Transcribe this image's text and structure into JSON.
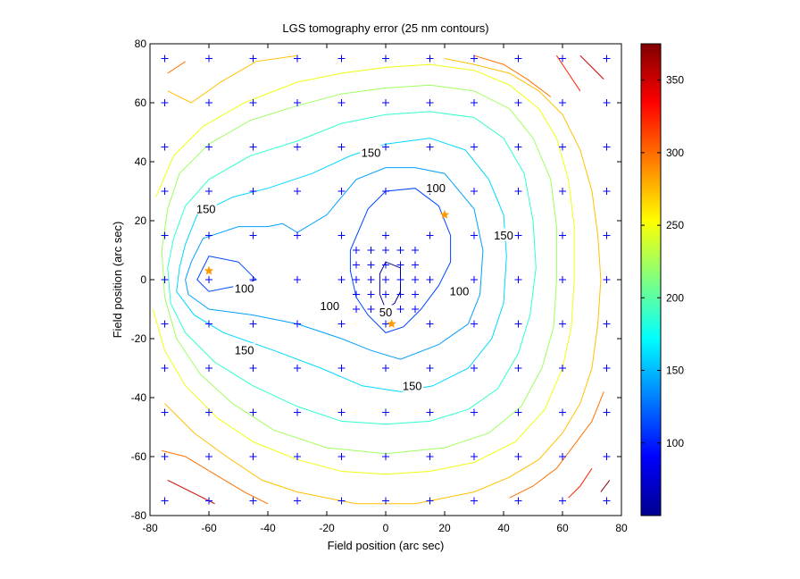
{
  "chart_data": {
    "type": "contour",
    "title": "LGS tomography error (25 nm contours)",
    "xlabel": "Field position (arc sec)",
    "ylabel": "Field position (arc sec)",
    "xlim": [
      -80,
      80
    ],
    "ylim": [
      -80,
      80
    ],
    "xticks": [
      "-80",
      "-60",
      "-40",
      "-20",
      "0",
      "20",
      "40",
      "60",
      "80"
    ],
    "yticks": [
      "-80",
      "-60",
      "-40",
      "-20",
      "0",
      "20",
      "40",
      "60",
      "80"
    ],
    "colorbar": {
      "range": [
        50,
        375
      ],
      "colormap": "jet",
      "ticks": [
        "100",
        "150",
        "200",
        "250",
        "300",
        "350"
      ]
    },
    "contour_interval": 25,
    "contours": [
      {
        "level": 50,
        "color": "#00008f",
        "points": [
          [
            -2,
            -5
          ],
          [
            -2,
            2
          ],
          [
            0,
            6
          ],
          [
            5,
            4
          ],
          [
            5,
            -4
          ],
          [
            3,
            -8
          ],
          [
            0,
            -10
          ],
          [
            -2,
            -5
          ]
        ]
      },
      {
        "level": 100,
        "color": "#0047ff",
        "points": [
          [
            -60,
            8
          ],
          [
            -50,
            6
          ],
          [
            -44,
            0
          ],
          [
            -50,
            -2
          ],
          [
            -60,
            -4
          ],
          [
            -64,
            0
          ],
          [
            -60,
            8
          ]
        ]
      },
      {
        "level": 100,
        "color": "#0047ff",
        "points": [
          [
            -12,
            10
          ],
          [
            -12,
            3
          ],
          [
            -10,
            -6
          ],
          [
            -6,
            -12
          ],
          [
            0,
            -18
          ],
          [
            6,
            -16
          ],
          [
            12,
            -10
          ],
          [
            18,
            -2
          ],
          [
            22,
            6
          ],
          [
            22,
            15
          ],
          [
            18,
            25
          ],
          [
            10,
            31
          ],
          [
            0,
            30
          ],
          [
            -6,
            24
          ],
          [
            -12,
            10
          ]
        ]
      },
      {
        "level": 125,
        "color": "#00a0ff",
        "points": [
          [
            -66,
            6
          ],
          [
            -62,
            14
          ],
          [
            -50,
            18
          ],
          [
            -40,
            18
          ],
          [
            -35,
            19
          ],
          [
            -30,
            16
          ],
          [
            -20,
            22
          ],
          [
            -10,
            34
          ],
          [
            0,
            38
          ],
          [
            10,
            38
          ],
          [
            20,
            36
          ],
          [
            30,
            24
          ],
          [
            33,
            10
          ],
          [
            32,
            -5
          ],
          [
            28,
            -15
          ],
          [
            18,
            -22
          ],
          [
            5,
            -27
          ],
          [
            -5,
            -24
          ],
          [
            -15,
            -20
          ],
          [
            -30,
            -15
          ],
          [
            -45,
            -12
          ],
          [
            -60,
            -10
          ],
          [
            -67,
            -5
          ],
          [
            -68,
            0
          ],
          [
            -66,
            6
          ]
        ]
      },
      {
        "level": 150,
        "color": "#00d8ff",
        "points": [
          [
            -70,
            4
          ],
          [
            -68,
            12
          ],
          [
            -64,
            22
          ],
          [
            -52,
            28
          ],
          [
            -40,
            31
          ],
          [
            -25,
            36
          ],
          [
            -12,
            42
          ],
          [
            0,
            46
          ],
          [
            15,
            48
          ],
          [
            27,
            44
          ],
          [
            35,
            34
          ],
          [
            40,
            22
          ],
          [
            41,
            8
          ],
          [
            40,
            -8
          ],
          [
            36,
            -20
          ],
          [
            28,
            -30
          ],
          [
            16,
            -36
          ],
          [
            5,
            -38
          ],
          [
            -8,
            -36
          ],
          [
            -22,
            -30
          ],
          [
            -38,
            -24
          ],
          [
            -55,
            -18
          ],
          [
            -65,
            -12
          ],
          [
            -71,
            -4
          ],
          [
            -70,
            4
          ]
        ]
      },
      {
        "level": 175,
        "color": "#30ffcf",
        "points": [
          [
            -74,
            4
          ],
          [
            -72,
            14
          ],
          [
            -68,
            25
          ],
          [
            -60,
            34
          ],
          [
            -46,
            42
          ],
          [
            -30,
            47
          ],
          [
            -15,
            53
          ],
          [
            0,
            56
          ],
          [
            15,
            57
          ],
          [
            30,
            55
          ],
          [
            40,
            48
          ],
          [
            47,
            36
          ],
          [
            50,
            20
          ],
          [
            51,
            4
          ],
          [
            49,
            -12
          ],
          [
            45,
            -25
          ],
          [
            38,
            -37
          ],
          [
            28,
            -44
          ],
          [
            15,
            -48
          ],
          [
            0,
            -49
          ],
          [
            -15,
            -48
          ],
          [
            -30,
            -43
          ],
          [
            -45,
            -36
          ],
          [
            -58,
            -28
          ],
          [
            -68,
            -18
          ],
          [
            -73,
            -8
          ],
          [
            -74,
            4
          ]
        ]
      },
      {
        "level": 200,
        "color": "#9fff60",
        "points": [
          [
            -76,
            10
          ],
          [
            -74,
            24
          ],
          [
            -70,
            36
          ],
          [
            -60,
            46
          ],
          [
            -46,
            54
          ],
          [
            -30,
            59
          ],
          [
            -15,
            63
          ],
          [
            0,
            65
          ],
          [
            15,
            66
          ],
          [
            30,
            64
          ],
          [
            42,
            58
          ],
          [
            50,
            48
          ],
          [
            56,
            34
          ],
          [
            58,
            18
          ],
          [
            58,
            0
          ],
          [
            57,
            -16
          ],
          [
            53,
            -30
          ],
          [
            46,
            -43
          ],
          [
            35,
            -52
          ],
          [
            20,
            -57
          ],
          [
            0,
            -59
          ],
          [
            -20,
            -57
          ],
          [
            -38,
            -51
          ],
          [
            -52,
            -42
          ],
          [
            -63,
            -32
          ],
          [
            -71,
            -20
          ],
          [
            -75,
            -6
          ],
          [
            -76,
            10
          ]
        ]
      },
      {
        "level": 225,
        "color": "#efff10",
        "points": [
          [
            -78,
            28
          ],
          [
            -72,
            42
          ],
          [
            -62,
            52
          ],
          [
            -48,
            60
          ],
          [
            -30,
            67
          ],
          [
            -15,
            70
          ],
          [
            0,
            72
          ],
          [
            15,
            73
          ],
          [
            30,
            71
          ],
          [
            42,
            66
          ],
          [
            52,
            58
          ],
          [
            58,
            48
          ],
          [
            62,
            34
          ],
          [
            64,
            18
          ],
          [
            64,
            0
          ],
          [
            63,
            -16
          ],
          [
            60,
            -30
          ],
          [
            54,
            -44
          ],
          [
            44,
            -55
          ],
          [
            30,
            -62
          ],
          [
            15,
            -65
          ],
          [
            0,
            -66
          ],
          [
            -15,
            -65
          ],
          [
            -30,
            -61
          ],
          [
            -45,
            -55
          ],
          [
            -57,
            -47
          ],
          [
            -68,
            -36
          ],
          [
            -75,
            -24
          ],
          [
            -79,
            -10
          ]
        ]
      },
      {
        "level": 250,
        "color": "#ffc000",
        "points": [
          [
            -74,
            64
          ],
          [
            -66,
            60
          ],
          [
            -56,
            67
          ],
          [
            -44,
            74
          ],
          [
            -30,
            76
          ]
        ]
      },
      {
        "level": 250,
        "color": "#ffc000",
        "points": [
          [
            20,
            75
          ],
          [
            30,
            73
          ],
          [
            42,
            70
          ],
          [
            52,
            64
          ],
          [
            60,
            56
          ],
          [
            66,
            44
          ],
          [
            70,
            30
          ],
          [
            72,
            15
          ],
          [
            73,
            0
          ],
          [
            72,
            -15
          ],
          [
            70,
            -30
          ],
          [
            66,
            -42
          ],
          [
            60,
            -52
          ],
          [
            52,
            -61
          ],
          [
            42,
            -67
          ],
          [
            30,
            -72
          ],
          [
            20,
            -74
          ],
          [
            10,
            -76
          ],
          [
            -10,
            -76
          ],
          [
            -20,
            -74
          ],
          [
            -30,
            -72
          ],
          [
            -42,
            -68
          ],
          [
            -54,
            -60
          ],
          [
            -65,
            -52
          ],
          [
            -75,
            -42
          ]
        ]
      },
      {
        "level": 275,
        "color": "#ff7000",
        "points": [
          [
            -74,
            70
          ],
          [
            -68,
            74
          ]
        ]
      },
      {
        "level": 275,
        "color": "#ff7000",
        "points": [
          [
            30,
            76
          ],
          [
            40,
            73
          ],
          [
            48,
            68
          ],
          [
            56,
            62
          ]
        ]
      },
      {
        "level": 275,
        "color": "#ff7000",
        "points": [
          [
            74,
            -38
          ],
          [
            70,
            -48
          ],
          [
            64,
            -56
          ],
          [
            58,
            -64
          ],
          [
            50,
            -70
          ],
          [
            42,
            -74
          ]
        ]
      },
      {
        "level": 275,
        "color": "#ff7000",
        "points": [
          [
            -76,
            -58
          ],
          [
            -68,
            -60
          ],
          [
            -58,
            -66
          ],
          [
            -48,
            -72
          ],
          [
            -40,
            -76
          ]
        ]
      },
      {
        "level": 300,
        "color": "#ff2000",
        "points": [
          [
            58,
            76
          ],
          [
            62,
            70
          ],
          [
            66,
            64
          ]
        ]
      },
      {
        "level": 300,
        "color": "#ff2000",
        "points": [
          [
            70,
            -64
          ],
          [
            66,
            -70
          ],
          [
            62,
            -74
          ]
        ]
      },
      {
        "level": 325,
        "color": "#d00000",
        "points": [
          [
            -74,
            -68
          ],
          [
            -66,
            -72
          ],
          [
            -58,
            -76
          ]
        ]
      },
      {
        "level": 325,
        "color": "#d00000",
        "points": [
          [
            66,
            76
          ],
          [
            70,
            72
          ],
          [
            74,
            68
          ]
        ]
      },
      {
        "level": 350,
        "color": "#900000",
        "points": [
          [
            73,
            -72
          ],
          [
            76,
            -68
          ]
        ]
      }
    ],
    "contour_labels": [
      {
        "text": "150",
        "x": -61,
        "y": 24
      },
      {
        "text": "150",
        "x": -5,
        "y": 43
      },
      {
        "text": "100",
        "x": 17,
        "y": 31
      },
      {
        "text": "150",
        "x": 40,
        "y": 15
      },
      {
        "text": "100",
        "x": -48,
        "y": -3
      },
      {
        "text": "100",
        "x": -19,
        "y": -9
      },
      {
        "text": "100",
        "x": 25,
        "y": -4
      },
      {
        "text": "50",
        "x": 0,
        "y": -11
      },
      {
        "text": "150",
        "x": -48,
        "y": -24
      },
      {
        "text": "150",
        "x": 9,
        "y": -36
      }
    ],
    "grid_markers": {
      "symbol": "+",
      "color": "#0000ff",
      "coarse_coords": [
        -75,
        -60,
        -45,
        -30,
        -15,
        0,
        15,
        30,
        45,
        60,
        75
      ],
      "fine_coords": [
        -10,
        -5,
        0,
        5,
        10
      ]
    },
    "stars": {
      "symbol": "star",
      "color": "#ff9900",
      "points": [
        [
          -60,
          3
        ],
        [
          20,
          22
        ],
        [
          2,
          -15
        ]
      ]
    }
  }
}
